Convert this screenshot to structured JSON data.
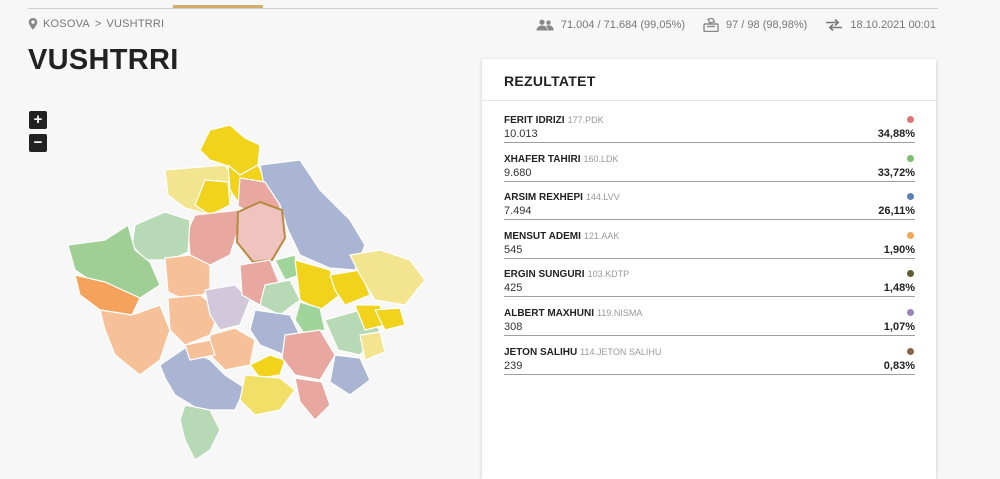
{
  "breadcrumb": {
    "root": "KOSOVA",
    "separator": ">",
    "current": "VUSHTRRI"
  },
  "stats": {
    "voters": "71.004 / 71.684 (99,05%)",
    "stations": "97 / 98 (98,98%)",
    "updated": "18.10.2021 00:01"
  },
  "page_title": "VUSHTRRI",
  "zoom": {
    "in": "+",
    "out": "−"
  },
  "results_title": "REZULTATET",
  "results": [
    {
      "name": "FERIT IDRIZI",
      "party": "177.PDK",
      "votes": "10.013",
      "percent": "34,88%",
      "color": "#e57373"
    },
    {
      "name": "XHAFER TAHIRI",
      "party": "160.LDK",
      "votes": "9.680",
      "percent": "33,72%",
      "color": "#7cbf6f"
    },
    {
      "name": "ARSIM REXHEPI",
      "party": "144.LVV",
      "votes": "7.494",
      "percent": "26,11%",
      "color": "#5b7fb5"
    },
    {
      "name": "MENSUT ADEMI",
      "party": "121.AAK",
      "votes": "545",
      "percent": "1,90%",
      "color": "#f2a65a"
    },
    {
      "name": "ERGIN SUNGURI",
      "party": "103.KDTP",
      "votes": "425",
      "percent": "1,48%",
      "color": "#5e5e2e"
    },
    {
      "name": "ALBERT MAXHUNI",
      "party": "119.NISMA",
      "votes": "308",
      "percent": "1,07%",
      "color": "#9a83b8"
    },
    {
      "name": "JETON SALIHU",
      "party": "114.JETON SALIHU",
      "votes": "239",
      "percent": "0,83%",
      "color": "#8b6446"
    }
  ],
  "icons": {
    "location": "pin-icon",
    "voters": "people-icon",
    "stations": "ballot-box-icon",
    "updated": "sync-arrows-icon"
  },
  "map_colors": {
    "pdk": "#e8a8a0",
    "ldk": "#9fd49a",
    "lvv": "#a9b5d2",
    "aak": "#f6c198",
    "lvv_yellow": "#f0d31a",
    "light_yellow": "#f3e48f",
    "light_green": "#b7d9b5",
    "selected_border": "#b8893f"
  }
}
